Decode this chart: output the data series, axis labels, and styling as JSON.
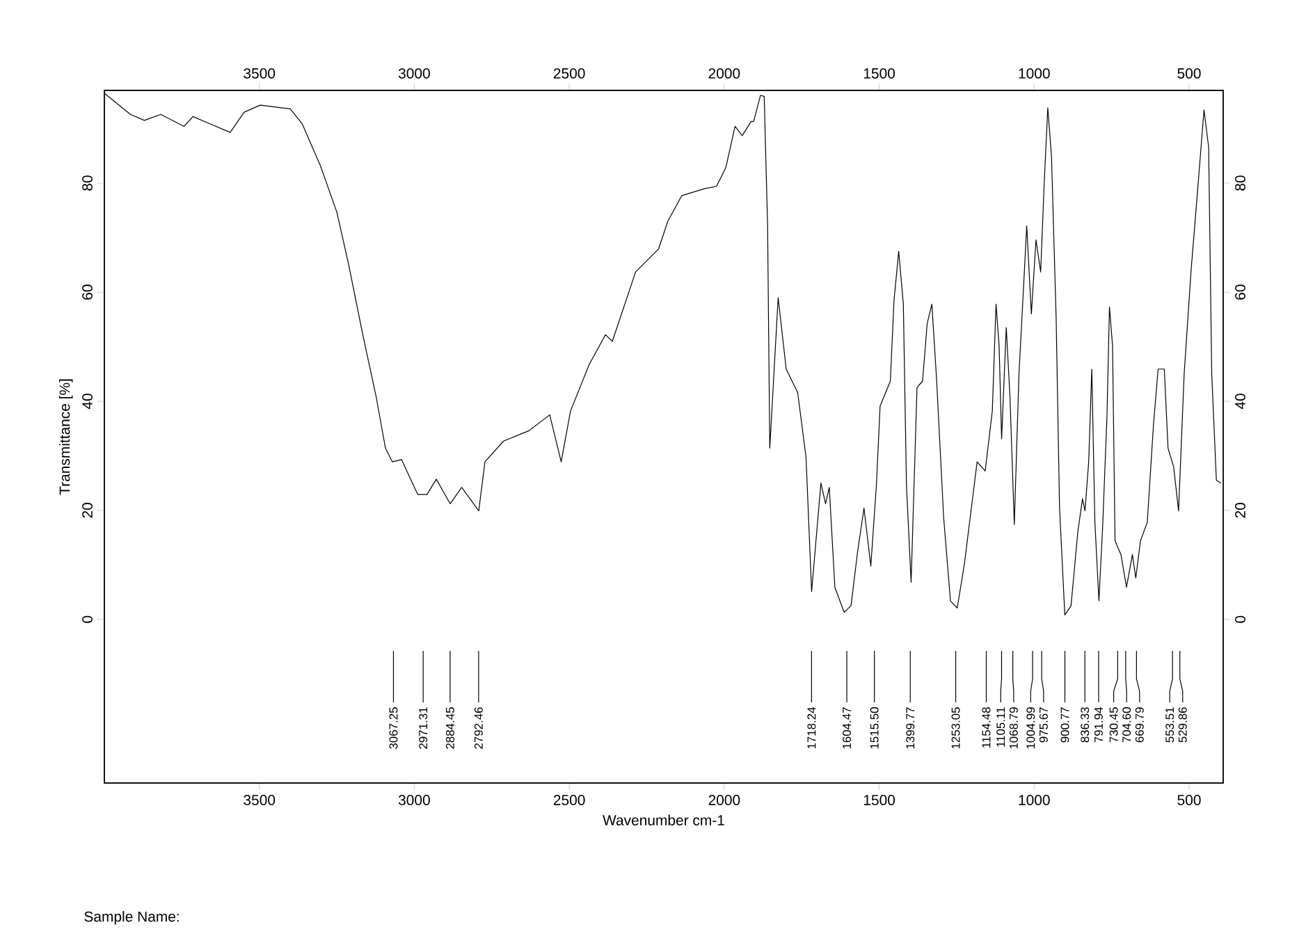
{
  "chart_data": {
    "type": "line",
    "xlabel": "Wavenumber cm-1",
    "ylabel": "Transmittance [%]",
    "xlim": [
      4000,
      390
    ],
    "xticks": [
      3500,
      3000,
      2500,
      2000,
      1500,
      1000,
      500
    ],
    "x2lim": [
      4000,
      390
    ],
    "x2ticks": [
      3500,
      3000,
      2500,
      2000,
      1500,
      1000,
      500
    ],
    "ylim": [
      -30,
      97
    ],
    "yticks": [
      0,
      20,
      40,
      60,
      80
    ],
    "y2lim": [
      -30,
      97
    ],
    "y2ticks": [
      0,
      20,
      40,
      60,
      80
    ],
    "series": [
      {
        "color": "#000000",
        "x": [
          3998,
          3916,
          3871,
          3818,
          3743,
          3714,
          3661,
          3594,
          3549,
          3497,
          3400,
          3362,
          3303,
          3250,
          3213,
          3168,
          3123,
          3093,
          3071,
          3041,
          2989,
          2959,
          2929,
          2884,
          2847,
          2792,
          2772,
          2712,
          2630,
          2563,
          2526,
          2496,
          2436,
          2383,
          2361,
          2286,
          2212,
          2182,
          2137,
          2062,
          2025,
          1995,
          1965,
          1942,
          1913,
          1905,
          1883,
          1871,
          1860,
          1853,
          1838,
          1826,
          1800,
          1763,
          1736,
          1718,
          1688,
          1673,
          1661,
          1643,
          1613,
          1591,
          1569,
          1549,
          1527,
          1509,
          1497,
          1464,
          1452,
          1437,
          1422,
          1412,
          1397,
          1378,
          1360,
          1345,
          1330,
          1315,
          1292,
          1270,
          1248,
          1225,
          1184,
          1158,
          1135,
          1123,
          1113,
          1105,
          1090,
          1078,
          1064,
          1049,
          1034,
          1024,
          1009,
          994,
          979,
          967,
          956,
          944,
          929,
          918,
          901,
          881,
          859,
          844,
          836,
          824,
          814,
          804,
          791,
          779,
          765,
          757,
          747,
          739,
          720,
          702,
          683,
          672,
          657,
          635,
          615,
          600,
          580,
          568,
          550,
          534,
          516,
          494,
          471,
          452,
          437,
          427,
          412,
          397
        ],
        "values": [
          96.4,
          92.6,
          91.5,
          92.6,
          90.4,
          92.2,
          90.9,
          89.3,
          93,
          94.3,
          93.6,
          90.9,
          83.2,
          74.7,
          65.4,
          52.7,
          40.8,
          31.4,
          28.9,
          29.3,
          22.9,
          22.9,
          25.7,
          21.2,
          24.2,
          19.9,
          28.9,
          32.7,
          34.6,
          37.5,
          28.9,
          38.2,
          46.7,
          52.2,
          51,
          63.7,
          67.9,
          73,
          77.7,
          79,
          79.4,
          82.8,
          90.4,
          88.7,
          91.3,
          91.3,
          96.1,
          95.9,
          72.2,
          31.4,
          46.7,
          59,
          45.9,
          41.6,
          29.7,
          5.1,
          25,
          21.2,
          24.2,
          5.9,
          1.3,
          2.5,
          12.7,
          20.4,
          9.8,
          24.6,
          39.1,
          43.7,
          58.6,
          67.5,
          57.8,
          24.6,
          6.8,
          42.5,
          43.7,
          54.3,
          57.8,
          44.2,
          18.7,
          3.4,
          2.1,
          10.2,
          28.9,
          27.2,
          38.2,
          57.8,
          50.1,
          33.1,
          53.5,
          40.8,
          17.4,
          45,
          61.1,
          72.2,
          56,
          69.6,
          63.7,
          80.7,
          93.8,
          84.9,
          55.2,
          20.4,
          0.8,
          2.5,
          16.1,
          22.1,
          19.9,
          28.9,
          45.9,
          17.8,
          3.4,
          17,
          37.4,
          57.3,
          50.1,
          14.4,
          11.9,
          5.9,
          11.9,
          7.6,
          14.4,
          17.8,
          35.7,
          45.9,
          45.9,
          31.4,
          28,
          19.9,
          45,
          63.7,
          79.8,
          93.4,
          86.6,
          45,
          25.5,
          25
        ]
      }
    ],
    "annotations": [
      {
        "text": "3067.25",
        "x": 3067.25
      },
      {
        "text": "2971.31",
        "x": 2971.31
      },
      {
        "text": "2884.45",
        "x": 2884.45
      },
      {
        "text": "2792.46",
        "x": 2792.46
      },
      {
        "text": "1718.24",
        "x": 1718.24
      },
      {
        "text": "1604.47",
        "x": 1604.47
      },
      {
        "text": "1515.50",
        "x": 1515.5
      },
      {
        "text": "1399.77",
        "x": 1399.77
      },
      {
        "text": "1253.05",
        "x": 1253.05
      },
      {
        "text": "1154.48",
        "x": 1154.48
      },
      {
        "text": "1105.11",
        "x": 1105.11
      },
      {
        "text": "1068.79",
        "x": 1068.79
      },
      {
        "text": "1004.99",
        "x": 1004.99
      },
      {
        "text": "975.67",
        "x": 975.67
      },
      {
        "text": "900.77",
        "x": 900.77
      },
      {
        "text": "836.33",
        "x": 836.33
      },
      {
        "text": "791.94",
        "x": 791.94
      },
      {
        "text": "730.45",
        "x": 730.45
      },
      {
        "text": "704.60",
        "x": 704.6
      },
      {
        "text": "669.79",
        "x": 669.79
      },
      {
        "text": "553.51",
        "x": 553.51
      },
      {
        "text": "529.86",
        "x": 529.86
      },
      "Sample Name:"
    ]
  }
}
